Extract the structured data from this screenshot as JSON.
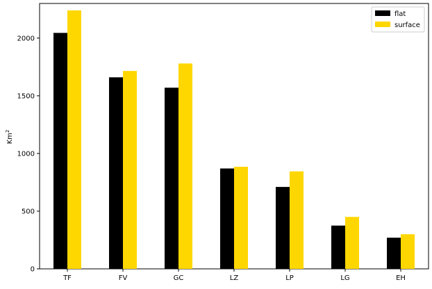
{
  "chart_data": {
    "type": "bar",
    "categories": [
      "TF",
      "FV",
      "GC",
      "LZ",
      "LP",
      "LG",
      "EH"
    ],
    "series": [
      {
        "name": "flat",
        "color": "#000000",
        "values": [
          2045,
          1660,
          1570,
          870,
          710,
          375,
          270
        ]
      },
      {
        "name": "surface",
        "color": "#ffd700",
        "values": [
          2240,
          1715,
          1780,
          885,
          845,
          450,
          300
        ]
      }
    ],
    "ylabel": "Km",
    "ylabel_superscript": "2",
    "ylim": [
      0,
      2300
    ],
    "yticks": [
      0,
      500,
      1000,
      1500,
      2000
    ],
    "legend_position": "upper right",
    "grid": false
  }
}
